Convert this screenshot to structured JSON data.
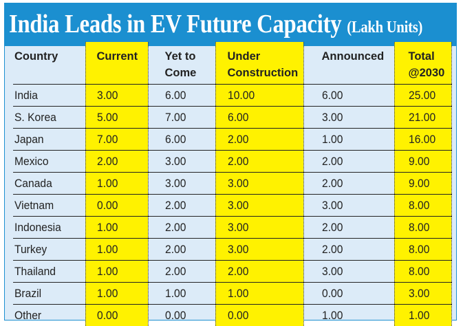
{
  "title": {
    "main": "India Leads in EV Future Capacity",
    "unit": "(Lakh Units)"
  },
  "columns": [
    "Country",
    "Current",
    "Yet to Come",
    "Under Construction",
    "Announced",
    "Total @2030"
  ],
  "rows": [
    [
      "India",
      "3.00",
      "6.00",
      "10.00",
      "6.00",
      "25.00"
    ],
    [
      "S. Korea",
      "5.00",
      "7.00",
      "6.00",
      "3.00",
      "21.00"
    ],
    [
      "Japan",
      "7.00",
      "6.00",
      "2.00",
      "1.00",
      "16.00"
    ],
    [
      "Mexico",
      "2.00",
      "3.00",
      "2.00",
      "2.00",
      "9.00"
    ],
    [
      "Canada",
      "1.00",
      "3.00",
      "3.00",
      "2.00",
      "9.00"
    ],
    [
      "Vietnam",
      "0.00",
      "2.00",
      "3.00",
      "3.00",
      "8.00"
    ],
    [
      "Indonesia",
      "1.00",
      "2.00",
      "3.00",
      "2.00",
      "8.00"
    ],
    [
      "Turkey",
      "1.00",
      "2.00",
      "3.00",
      "2.00",
      "8.00"
    ],
    [
      "Thailand",
      "1.00",
      "2.00",
      "2.00",
      "3.00",
      "8.00"
    ],
    [
      "Brazil",
      "1.00",
      "1.00",
      "1.00",
      "0.00",
      "3.00"
    ],
    [
      "Other",
      "0.00",
      "0.00",
      "0.00",
      "1.00",
      "1.00"
    ]
  ],
  "colors": {
    "title_bar": "#1b8fd0",
    "background": "#dcebf8",
    "highlight": "#fff200"
  }
}
